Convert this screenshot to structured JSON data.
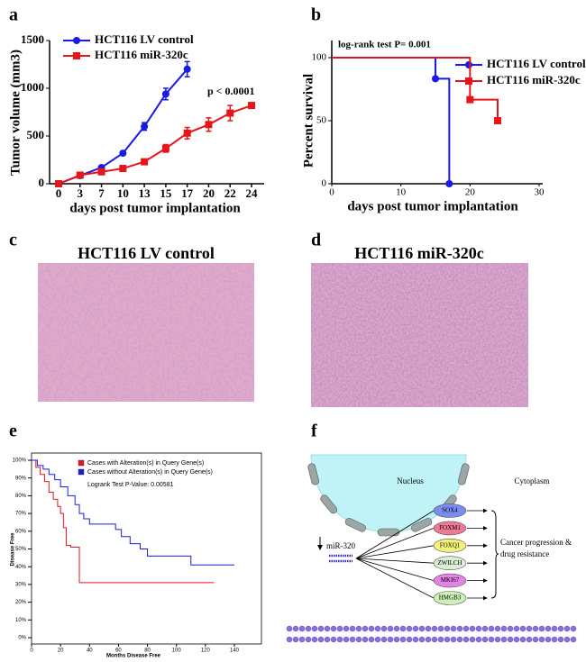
{
  "chart_data": [
    {
      "panel": "a",
      "type": "line",
      "categories": [
        "0",
        "3",
        "7",
        "10",
        "13",
        "15",
        "17",
        "20",
        "22",
        "24"
      ],
      "series": [
        {
          "name": "HCT116 LV control",
          "color": "#1a1ae6",
          "marker": "circle",
          "values": [
            0,
            85,
            170,
            320,
            600,
            940,
            1200,
            null,
            null,
            null
          ],
          "errors": [
            0,
            10,
            15,
            20,
            40,
            60,
            80,
            null,
            null,
            null
          ]
        },
        {
          "name": "HCT116 miR-320c",
          "color": "#e8141c",
          "marker": "square",
          "values": [
            0,
            90,
            125,
            160,
            230,
            370,
            530,
            620,
            740,
            820
          ],
          "errors": [
            0,
            10,
            15,
            15,
            20,
            40,
            60,
            70,
            80,
            20
          ]
        }
      ],
      "ylim": [
        0,
        1500
      ],
      "yticks": [
        0,
        500,
        1000,
        1500
      ],
      "xlabel": "days post tumor implantation",
      "ylabel": "Tumor volume (mm3)",
      "annotation": "p < 0.0001",
      "legend": "upper left"
    },
    {
      "panel": "b",
      "type": "step",
      "series": [
        {
          "name": "HCT116 LV control",
          "color": "#1a1ae6",
          "marker": "circle",
          "x": [
            0,
            15,
            17
          ],
          "values": [
            100,
            83.3,
            0
          ]
        },
        {
          "name": "HCT116 miR-320c",
          "color": "#e8141c",
          "marker": "square",
          "x": [
            0,
            20,
            24
          ],
          "values": [
            100,
            66.7,
            50
          ]
        }
      ],
      "xlim": [
        0,
        30
      ],
      "xticks": [
        0,
        10,
        20,
        30
      ],
      "ylim": [
        0,
        100
      ],
      "yticks": [
        0,
        50,
        100
      ],
      "xlabel": "days post tumor implantation",
      "ylabel": "Percent survival",
      "annotation": "log-rank test P= 0.001",
      "legend": "upper right"
    },
    {
      "panel": "e",
      "type": "step",
      "series": [
        {
          "name": "Cases with Alteration(s) in Query Gene(s)",
          "color": "#e8141c",
          "marker": "none",
          "x": [
            0,
            3,
            6,
            9,
            12,
            15,
            18,
            20,
            22,
            24,
            27,
            33,
            126
          ],
          "values": [
            100,
            96,
            92,
            88,
            82,
            78,
            74,
            70,
            62,
            52,
            51,
            31,
            31
          ]
        },
        {
          "name": "Cases without Alteration(s) in Query Gene(s)",
          "color": "#1a1ae6",
          "marker": "none",
          "x": [
            0,
            4,
            8,
            12,
            16,
            20,
            25,
            30,
            33,
            36,
            40,
            52,
            58,
            62,
            68,
            75,
            80,
            95,
            110,
            140
          ],
          "values": [
            100,
            97,
            95,
            92,
            89,
            85,
            80,
            75,
            70,
            67,
            64,
            64,
            61,
            57,
            53,
            50,
            46,
            46,
            41,
            41
          ]
        }
      ],
      "xlim": [
        0,
        140
      ],
      "xticks": [
        0,
        20,
        40,
        60,
        80,
        100,
        120,
        140
      ],
      "ylim": [
        0,
        100
      ],
      "yticks": [
        {
          "value": 0,
          "label": "0%"
        },
        {
          "value": 10,
          "label": "10%"
        },
        {
          "value": 20,
          "label": "20%"
        },
        {
          "value": 30,
          "label": "30%"
        },
        {
          "value": 40,
          "label": "40%"
        },
        {
          "value": 50,
          "label": "50%"
        },
        {
          "value": 60,
          "label": "60%"
        },
        {
          "value": 70,
          "label": "70%"
        },
        {
          "value": 80,
          "label": "80%"
        },
        {
          "value": 90,
          "label": "90%"
        },
        {
          "value": 100,
          "label": "100%"
        }
      ],
      "xlabel": "Months Disease Free",
      "ylabel": "Disease Free",
      "annotation": "Logrank Test P-Value: 0.00581",
      "legend": "upper left"
    }
  ],
  "images": [
    {
      "panel": "c",
      "title": "HCT116 LV control"
    },
    {
      "panel": "d",
      "title": "HCT116 miR-320c"
    }
  ],
  "diagram": {
    "panel": "f",
    "nucleus": "Nucleus",
    "cytoplasm": "Cytoplasm",
    "mirna": "miR-320",
    "genes": [
      "SOX4",
      "FOXM1",
      "FOXQ1",
      "ZWILCH",
      "MKI67",
      "HMGB3"
    ],
    "outcome": [
      "Cancer progression &",
      "drug resistance"
    ]
  }
}
